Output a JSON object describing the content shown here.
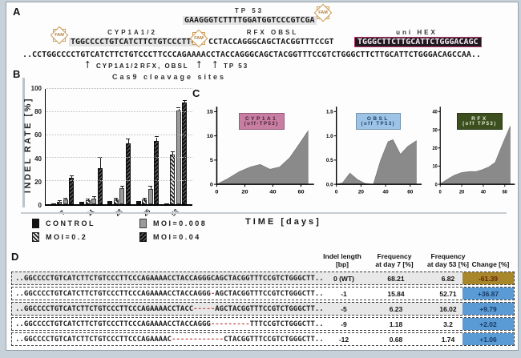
{
  "panelA": {
    "label": "A",
    "fam_label": "FAM",
    "tp53_label": "TP 53",
    "tp53_seq": "GAAGGGTCTTTTGGATGGTCCCGTCGA",
    "cyp_label": "CYP1A1/2",
    "cyp_seq": "TGGCCCCTGTCATCTTCTGTCCCTTC",
    "rfx_label": "RFX OBSL",
    "rfx_seq": "CCTACCAGGGCAGCTACGGTTTCCGT",
    "hex_label": "uni HEX",
    "hex_seq": "TGGGCTTCTTGCATTCTGGGACAGC",
    "hex_colors": {
      "bg": "#221820",
      "border": "#b8326b",
      "text": "#f3ecf0"
    },
    "full_seq": "..CCTGGCCCCTGTCATCTTCTGTCCCTTCCCAGAAAACCTACCAGGGCAGCTACGGTTTCCGTCTGGGCTTCTTGCATTCTGGGACAGCCAA..",
    "arrow1_label": "CYP1A1/2",
    "arrow2_label": "RFX, OBSL",
    "arrow3_label": "TP 53",
    "caption": "Cas9 cleavage sites"
  },
  "panelB": {
    "label": "B"
  },
  "panelC": {
    "label": "C"
  },
  "panelD": {
    "label": "D",
    "headers": [
      "Indel length\n[bp]",
      "Frequency\nat day 7 [%]",
      "Frequency\nat day 53 [%]",
      "Change [%]"
    ],
    "dash_color": "#c0504d",
    "rows": [
      {
        "seq_pre": "..GGCCCCTGTCATCTTCTGTCCCTTCCCAGAAAACCTACCAGGGCAGCTACGGTTTCCGTCTGGGCTT..",
        "seq_del": "",
        "seq_post": "",
        "indel": "0 (WT)",
        "freq_day7": "68.21",
        "freq_day53": "6.82",
        "change": "-61.39",
        "change_bg": "#a8872b",
        "change_fg": "#641f0e",
        "shaded": true
      },
      {
        "seq_pre": "..GGCCCCTGTCATCTTCTGTCCCTTCCCAGAAAACCTACCAGGG",
        "seq_del": "-",
        "seq_post": "AGCTACGGTTTCCGTCTGGGCTT..",
        "indel": "-1",
        "freq_day7": "15.84",
        "freq_day53": "52.71",
        "change": "+36.87",
        "change_bg": "#5b9bd5",
        "change_fg": "#173a63",
        "shaded": false
      },
      {
        "seq_pre": "..GGCCCCTGTCATCTTCTGTCCCTTCCCAGAAAACCTACC",
        "seq_del": "-----",
        "seq_post": "AGCTACGGTTTCCGTCTGGGCTT..",
        "indel": "-5",
        "freq_day7": "6.23",
        "freq_day53": "16.02",
        "change": "+9.79",
        "change_bg": "#5b9bd5",
        "change_fg": "#173a63",
        "shaded": true
      },
      {
        "seq_pre": "..GGCCCCTGTCATCTTCTGTCCCTTCCCAGAAAACCTACCAGGG",
        "seq_del": "---------",
        "seq_post": "TTTCCGTCTGGGCTT..",
        "indel": "-9",
        "freq_day7": "1.18",
        "freq_day53": "3.2",
        "change": "+2.02",
        "change_bg": "#5b9bd5",
        "change_fg": "#173a63",
        "shaded": false
      },
      {
        "seq_pre": "..GGCCCCTGTCATCTTCTGTCCCTTCCCAGAAAAC",
        "seq_del": "------------",
        "seq_post": "CTACGGTTTCCGTCTGGGCTT..",
        "indel": "-12",
        "freq_day7": "0.68",
        "freq_day53": "1.74",
        "change": "+1.06",
        "change_bg": "#5b9bd5",
        "change_fg": "#173a63",
        "shaded": false
      }
    ]
  },
  "chart_data": [
    {
      "type": "bar",
      "title": "",
      "xlabel": "TIME [days]",
      "ylabel": "INDEL RATE [%]",
      "ylim": [
        0,
        100
      ],
      "yticks": [
        0,
        20,
        40,
        60,
        80,
        100
      ],
      "grid": "dotted horizontal",
      "legend_position": "bottom",
      "categories": [
        "7",
        "11",
        "22",
        "25",
        "52"
      ],
      "series": [
        {
          "name": "CONTROL",
          "pattern": "solid-black",
          "values": [
            0.8,
            2,
            3,
            3,
            0.8
          ],
          "errors": [
            0,
            0,
            0,
            0,
            0
          ]
        },
        {
          "name": "MOI=0.2",
          "pattern": "hatch-light",
          "values": [
            2,
            3.5,
            4,
            4,
            43
          ],
          "errors": [
            0.5,
            0.8,
            0.8,
            0.8,
            2
          ]
        },
        {
          "name": "MOI=0.008",
          "pattern": "solid-gray",
          "values": [
            4,
            5,
            14,
            13,
            81
          ],
          "errors": [
            0.8,
            1,
            1.5,
            2,
            2
          ]
        },
        {
          "name": "MOI=0.04",
          "pattern": "hatch-dark",
          "values": [
            23,
            31,
            53,
            55,
            88
          ],
          "errors": [
            1.5,
            9,
            3,
            3,
            1.5
          ]
        }
      ]
    },
    {
      "type": "area",
      "title": "CYP1A1",
      "subtitle": "(off-TP53)",
      "header_bg": "#c87da3",
      "header_fg": "#3d1f2c",
      "fill": "#8a8a8a",
      "xlim": [
        0,
        68
      ],
      "ylim": [
        0,
        15
      ],
      "xticks": [
        0,
        20,
        40,
        60
      ],
      "yticks": [
        0,
        5,
        10,
        15
      ],
      "x": [
        0,
        8,
        16,
        24,
        31,
        38,
        45,
        52,
        58,
        65
      ],
      "y": [
        0,
        1.2,
        2.6,
        3.6,
        4.1,
        3.1,
        3.6,
        5.5,
        8,
        11
      ]
    },
    {
      "type": "area",
      "title": "OBSL",
      "subtitle": "(off TP53)",
      "header_bg": "#9dc3e6",
      "header_fg": "#1f3f63",
      "fill": "#8a8a8a",
      "xlim": [
        0,
        68
      ],
      "ylim": [
        0,
        1.5
      ],
      "xticks": [
        0,
        20,
        40,
        60
      ],
      "yticks": [
        "0.0",
        "0.5",
        "1.0",
        "1.5"
      ],
      "x": [
        0,
        5,
        11,
        17,
        23,
        30,
        36,
        42,
        46,
        52,
        58,
        65
      ],
      "y": [
        0,
        0.03,
        0.23,
        0.1,
        0.02,
        0,
        0.5,
        0.88,
        0.92,
        0.62,
        0.78,
        0.9
      ]
    },
    {
      "type": "area",
      "title": "RFX",
      "subtitle": "(off TP53)",
      "header_bg": "#3c4f1e",
      "header_fg": "#e8eedd",
      "fill": "#8a8a8a",
      "xlim": [
        0,
        68
      ],
      "ylim": [
        0,
        40
      ],
      "xticks": [
        0,
        20,
        40,
        60
      ],
      "yticks": [
        0,
        10,
        20,
        30,
        40
      ],
      "x": [
        0,
        6,
        13,
        20,
        27,
        33,
        39,
        45,
        51,
        57,
        65
      ],
      "y": [
        0.3,
        2.5,
        5,
        6.5,
        7,
        7,
        8,
        9.5,
        12,
        21,
        32
      ]
    }
  ]
}
